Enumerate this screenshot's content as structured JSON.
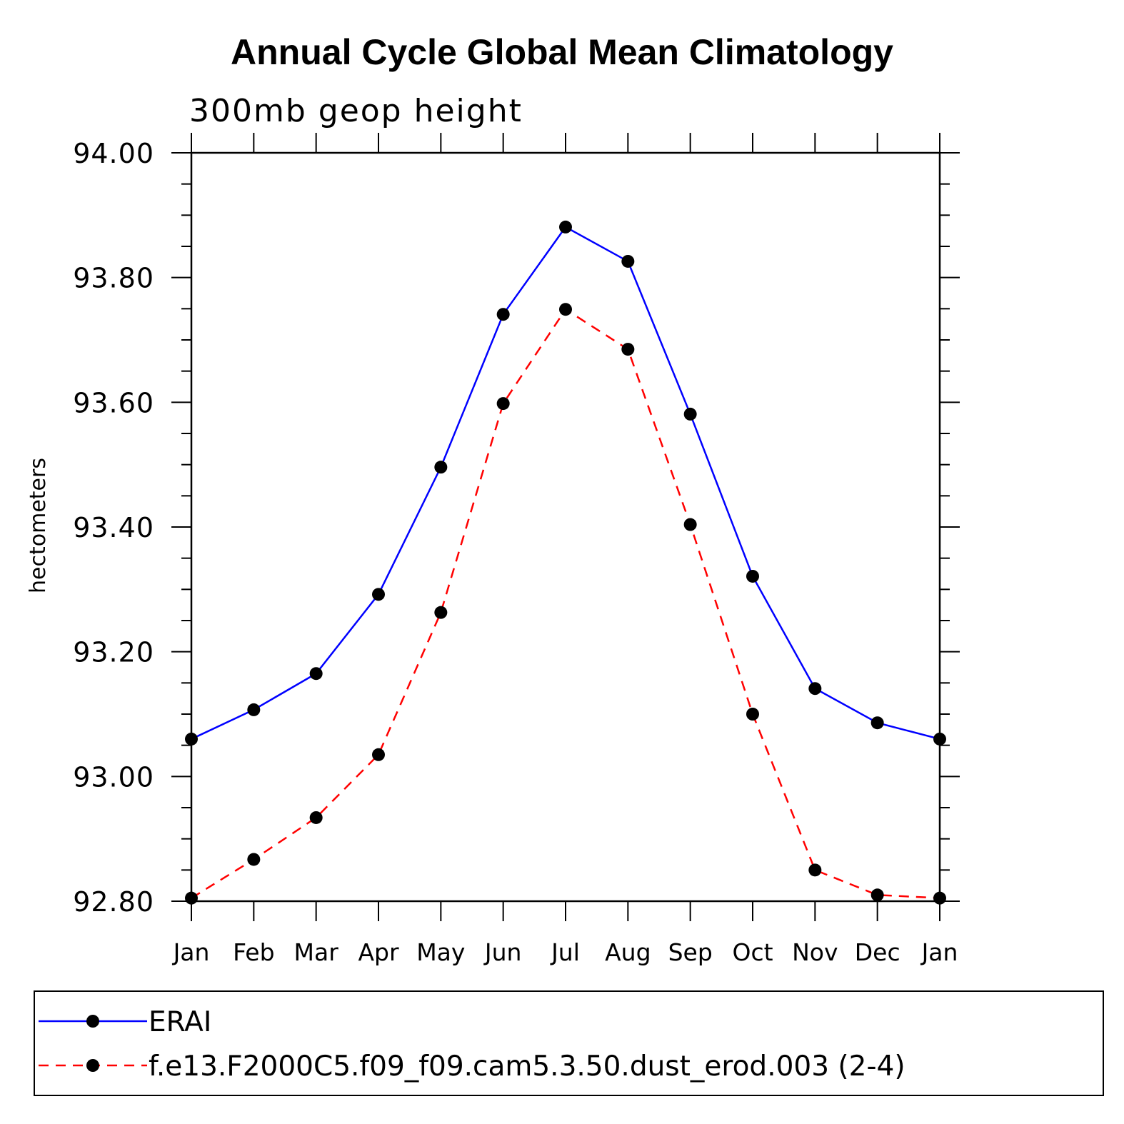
{
  "chart_data": {
    "type": "line",
    "title": "Annual Cycle Global Mean Climatology",
    "subtitle": "300mb geop height",
    "ylabel": "hectometers",
    "xlabel": "",
    "categories": [
      "Jan",
      "Feb",
      "Mar",
      "Apr",
      "May",
      "Jun",
      "Jul",
      "Aug",
      "Sep",
      "Oct",
      "Nov",
      "Dec",
      "Jan"
    ],
    "ylim": [
      92.8,
      94.0
    ],
    "yticks": [
      "92.80",
      "93.00",
      "93.20",
      "93.40",
      "93.60",
      "93.80",
      "94.00"
    ],
    "series": [
      {
        "name": "ERAI",
        "color": "#0000ff",
        "dash": "solid",
        "values": [
          93.06,
          93.107,
          93.165,
          93.292,
          93.496,
          93.741,
          93.881,
          93.826,
          93.581,
          93.321,
          93.141,
          93.086,
          93.06
        ]
      },
      {
        "name": "f.e13.F2000C5.f09_f09.cam5.3.50.dust_erod.003 (2-4)",
        "color": "#ff0000",
        "dash": "dashed",
        "values": [
          92.805,
          92.867,
          92.934,
          93.035,
          93.263,
          93.598,
          93.749,
          93.685,
          93.404,
          93.1,
          92.85,
          92.81,
          92.805
        ]
      }
    ],
    "legend_position": "bottom",
    "grid": false
  }
}
